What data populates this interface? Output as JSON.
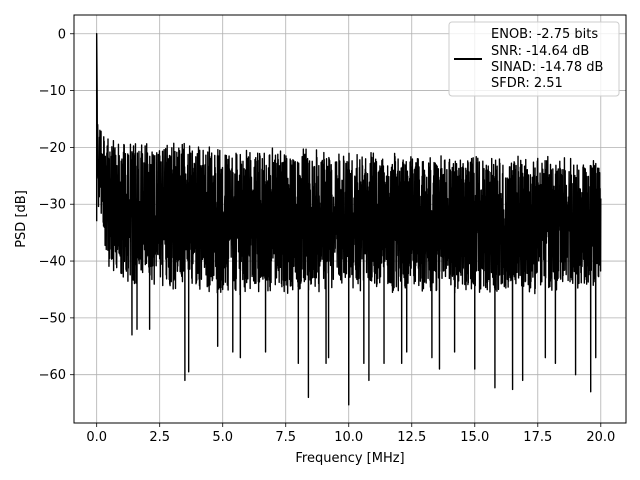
{
  "chart_data": {
    "type": "line",
    "title": "",
    "xlabel": "Frequency [MHz]",
    "ylabel": "PSD [dB]",
    "xlim": [
      -0.9,
      21.0
    ],
    "ylim": [
      -68.5,
      3.3
    ],
    "xticks": [
      0.0,
      2.5,
      5.0,
      7.5,
      10.0,
      12.5,
      15.0,
      17.5,
      20.0
    ],
    "xtick_labels": [
      "0.0",
      "2.5",
      "5.0",
      "7.5",
      "10.0",
      "12.5",
      "15.0",
      "17.5",
      "20.0"
    ],
    "yticks": [
      0,
      -10,
      -20,
      -30,
      -40,
      -50,
      -60
    ],
    "ytick_labels": [
      "0",
      "−10",
      "−20",
      "−30",
      "−40",
      "−50",
      "−60"
    ],
    "grid": true,
    "legend_placement": "upper-right",
    "series": [
      {
        "color": "#000000",
        "x_range": [
          0.0,
          20.0
        ],
        "peak": {
          "x": 0.0,
          "y": 0.0
        },
        "approx_upper_envelope": [
          [
            0.05,
            -15
          ],
          [
            0.5,
            -18
          ],
          [
            1.0,
            -18.5
          ],
          [
            2.5,
            -19
          ],
          [
            5.0,
            -19.5
          ],
          [
            7.5,
            -20
          ],
          [
            10.0,
            -20.5
          ],
          [
            12.5,
            -21
          ],
          [
            15.0,
            -21.5
          ],
          [
            17.5,
            -21.5
          ],
          [
            20.0,
            -22
          ]
        ],
        "approx_lower_envelope": [
          [
            0.05,
            -33
          ],
          [
            0.5,
            -42
          ],
          [
            1.0,
            -44
          ],
          [
            2.5,
            -45
          ],
          [
            5.0,
            -46
          ],
          [
            7.5,
            -46
          ],
          [
            10.0,
            -46
          ],
          [
            12.5,
            -46
          ],
          [
            15.0,
            -46
          ],
          [
            17.5,
            -46
          ],
          [
            20.0,
            -45
          ]
        ],
        "deep_nulls": [
          [
            1.4,
            -53
          ],
          [
            1.6,
            -52
          ],
          [
            2.1,
            -52
          ],
          [
            3.5,
            -61
          ],
          [
            3.65,
            -59.5
          ],
          [
            4.8,
            -55
          ],
          [
            5.4,
            -56
          ],
          [
            5.7,
            -57
          ],
          [
            6.7,
            -56
          ],
          [
            8.0,
            -58
          ],
          [
            8.4,
            -64
          ],
          [
            9.1,
            -58
          ],
          [
            9.2,
            -57
          ],
          [
            10.0,
            -65.3
          ],
          [
            10.6,
            -58
          ],
          [
            10.8,
            -61
          ],
          [
            11.4,
            -58
          ],
          [
            12.1,
            -58
          ],
          [
            12.3,
            -56
          ],
          [
            13.3,
            -57
          ],
          [
            13.6,
            -59
          ],
          [
            14.2,
            -56
          ],
          [
            15.0,
            -59
          ],
          [
            15.8,
            -62.3
          ],
          [
            16.5,
            -62.6
          ],
          [
            16.9,
            -61
          ],
          [
            17.8,
            -57
          ],
          [
            18.2,
            -58
          ],
          [
            19.0,
            -60
          ],
          [
            19.6,
            -63
          ],
          [
            19.8,
            -57
          ]
        ]
      }
    ],
    "legend": {
      "lines": [
        "ENOB: -2.75 bits",
        "SNR: -14.64 dB",
        "SINAD: -14.78 dB",
        "SFDR: 2.51"
      ]
    }
  }
}
